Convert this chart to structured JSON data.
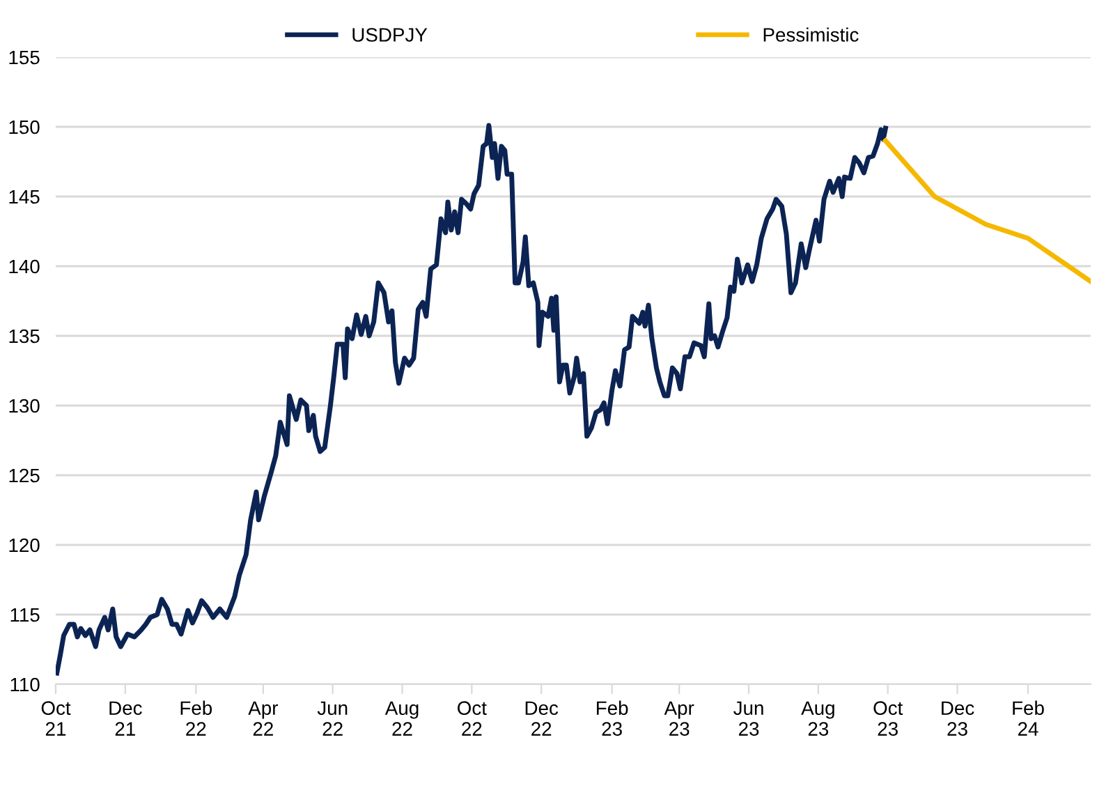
{
  "chart_data": {
    "type": "line",
    "xlim": [
      "2021-10-01",
      "2024-03-27"
    ],
    "ylim": [
      110,
      155
    ],
    "xticks": [
      {
        "value": "2021-10-01",
        "label": "Oct\n21"
      },
      {
        "value": "2021-12-01",
        "label": "Dec\n21"
      },
      {
        "value": "2022-02-01",
        "label": "Feb\n22"
      },
      {
        "value": "2022-04-01",
        "label": "Apr\n22"
      },
      {
        "value": "2022-06-01",
        "label": "Jun\n22"
      },
      {
        "value": "2022-08-01",
        "label": "Aug\n22"
      },
      {
        "value": "2022-10-01",
        "label": "Oct\n22"
      },
      {
        "value": "2022-12-01",
        "label": "Dec\n22"
      },
      {
        "value": "2023-02-01",
        "label": "Feb\n23"
      },
      {
        "value": "2023-04-01",
        "label": "Apr\n23"
      },
      {
        "value": "2023-06-01",
        "label": "Jun\n23"
      },
      {
        "value": "2023-08-01",
        "label": "Aug\n23"
      },
      {
        "value": "2023-10-01",
        "label": "Oct\n23"
      },
      {
        "value": "2023-12-01",
        "label": "Dec\n23"
      },
      {
        "value": "2024-02-01",
        "label": "Feb\n24"
      }
    ],
    "yticks": [
      110,
      115,
      120,
      125,
      130,
      135,
      140,
      145,
      150,
      155
    ],
    "grid": "y",
    "legend": "top",
    "marker": "none",
    "line_style": "solid",
    "series": [
      {
        "name": "USDPJY",
        "color": "#0c2454",
        "x": [
          "2021-10-02",
          "2021-10-05",
          "2021-10-08",
          "2021-10-13",
          "2021-10-17",
          "2021-10-20",
          "2021-10-23",
          "2021-10-27",
          "2021-10-31",
          "2021-11-05",
          "2021-11-08",
          "2021-11-13",
          "2021-11-16",
          "2021-11-20",
          "2021-11-23",
          "2021-11-27",
          "2021-12-03",
          "2021-12-09",
          "2021-12-15",
          "2021-12-19",
          "2021-12-23",
          "2021-12-29",
          "2022-01-02",
          "2022-01-07",
          "2022-01-11",
          "2022-01-15",
          "2022-01-19",
          "2022-01-25",
          "2022-01-29",
          "2022-02-02",
          "2022-02-06",
          "2022-02-11",
          "2022-02-16",
          "2022-02-22",
          "2022-02-28",
          "2022-03-07",
          "2022-03-11",
          "2022-03-17",
          "2022-03-21",
          "2022-03-26",
          "2022-03-28",
          "2022-04-02",
          "2022-04-08",
          "2022-04-12",
          "2022-04-16",
          "2022-04-22",
          "2022-04-24",
          "2022-04-30",
          "2022-05-04",
          "2022-05-09",
          "2022-05-11",
          "2022-05-15",
          "2022-05-17",
          "2022-05-21",
          "2022-05-25",
          "2022-05-30",
          "2022-06-02",
          "2022-06-05",
          "2022-06-10",
          "2022-06-12",
          "2022-06-14",
          "2022-06-18",
          "2022-06-22",
          "2022-06-26",
          "2022-06-30",
          "2022-07-03",
          "2022-07-07",
          "2022-07-11",
          "2022-07-16",
          "2022-07-20",
          "2022-07-23",
          "2022-07-26",
          "2022-07-29",
          "2022-08-03",
          "2022-08-07",
          "2022-08-11",
          "2022-08-15",
          "2022-08-19",
          "2022-08-22",
          "2022-08-26",
          "2022-08-31",
          "2022-09-04",
          "2022-09-08",
          "2022-09-10",
          "2022-09-13",
          "2022-09-16",
          "2022-09-19",
          "2022-09-22",
          "2022-09-26",
          "2022-09-30",
          "2022-10-03",
          "2022-10-07",
          "2022-10-11",
          "2022-10-14",
          "2022-10-16",
          "2022-10-19",
          "2022-10-21",
          "2022-10-24",
          "2022-10-27",
          "2022-10-30",
          "2022-11-01",
          "2022-11-05",
          "2022-11-08",
          "2022-11-11",
          "2022-11-15",
          "2022-11-17",
          "2022-11-20",
          "2022-11-24",
          "2022-11-28",
          "2022-11-29",
          "2022-12-02",
          "2022-12-07",
          "2022-12-10",
          "2022-12-12",
          "2022-12-14",
          "2022-12-17",
          "2022-12-20",
          "2022-12-23",
          "2022-12-26",
          "2022-12-30",
          "2023-01-01",
          "2023-01-04",
          "2023-01-07",
          "2023-01-10",
          "2023-01-14",
          "2023-01-18",
          "2023-01-22",
          "2023-01-25",
          "2023-01-28",
          "2023-02-01",
          "2023-02-04",
          "2023-02-08",
          "2023-02-12",
          "2023-02-16",
          "2023-02-19",
          "2023-02-25",
          "2023-02-28",
          "2023-03-02",
          "2023-03-05",
          "2023-03-08",
          "2023-03-12",
          "2023-03-15",
          "2023-03-19",
          "2023-03-22",
          "2023-03-26",
          "2023-03-30",
          "2023-04-02",
          "2023-04-06",
          "2023-04-10",
          "2023-04-14",
          "2023-04-20",
          "2023-04-23",
          "2023-04-27",
          "2023-04-29",
          "2023-05-02",
          "2023-05-05",
          "2023-05-09",
          "2023-05-13",
          "2023-05-16",
          "2023-05-19",
          "2023-05-22",
          "2023-05-26",
          "2023-05-31",
          "2023-06-04",
          "2023-06-08",
          "2023-06-12",
          "2023-06-17",
          "2023-06-22",
          "2023-06-25",
          "2023-06-30",
          "2023-07-04",
          "2023-07-08",
          "2023-07-12",
          "2023-07-17",
          "2023-07-21",
          "2023-07-24",
          "2023-07-30",
          "2023-08-02",
          "2023-08-06",
          "2023-08-11",
          "2023-08-14",
          "2023-08-19",
          "2023-08-22",
          "2023-08-24",
          "2023-08-29",
          "2023-09-02",
          "2023-09-06",
          "2023-09-10",
          "2023-09-14",
          "2023-09-18",
          "2023-09-22",
          "2023-09-25",
          "2023-09-27",
          "2023-09-29"
        ],
        "values": [
          110.8,
          112.1,
          113.5,
          114.3,
          114.3,
          113.4,
          114.0,
          113.5,
          113.9,
          112.7,
          113.9,
          114.8,
          113.9,
          115.4,
          113.4,
          112.7,
          113.6,
          113.4,
          113.9,
          114.3,
          114.8,
          115.0,
          116.1,
          115.4,
          114.3,
          114.3,
          113.6,
          115.3,
          114.4,
          115.1,
          116.0,
          115.5,
          114.8,
          115.4,
          114.8,
          116.3,
          117.8,
          119.3,
          121.8,
          123.8,
          121.8,
          123.5,
          125.2,
          126.4,
          128.8,
          127.2,
          130.7,
          129.0,
          130.4,
          130.0,
          128.2,
          129.3,
          127.8,
          126.7,
          127.0,
          130.0,
          132.1,
          134.4,
          134.4,
          132.0,
          135.5,
          134.8,
          136.5,
          135.1,
          136.4,
          135.0,
          136.0,
          138.8,
          138.1,
          136.0,
          136.8,
          133.1,
          131.6,
          133.4,
          132.9,
          133.4,
          136.9,
          137.4,
          136.4,
          139.8,
          140.1,
          143.4,
          142.4,
          144.6,
          142.6,
          143.9,
          142.4,
          144.8,
          144.5,
          144.1,
          145.2,
          145.8,
          148.6,
          148.8,
          150.1,
          147.8,
          148.8,
          146.3,
          148.6,
          148.3,
          146.6,
          146.6,
          138.8,
          138.8,
          140.3,
          142.1,
          138.6,
          138.8,
          137.4,
          134.3,
          136.7,
          136.4,
          137.7,
          135.4,
          137.8,
          131.7,
          132.9,
          132.9,
          130.9,
          132.1,
          133.4,
          131.7,
          132.3,
          127.8,
          128.4,
          129.5,
          129.7,
          130.2,
          128.7,
          131.1,
          132.5,
          131.4,
          134.0,
          134.2,
          136.4,
          135.9,
          136.7,
          135.7,
          137.2,
          134.8,
          132.7,
          131.7,
          130.7,
          130.7,
          132.7,
          132.3,
          131.2,
          133.5,
          133.5,
          134.5,
          134.3,
          133.5,
          137.3,
          134.8,
          135.0,
          134.2,
          135.3,
          136.3,
          138.5,
          138.2,
          140.5,
          138.8,
          140.1,
          138.9,
          140.1,
          142.0,
          143.4,
          144.1,
          144.8,
          144.3,
          142.3,
          138.1,
          138.8,
          141.6,
          139.9,
          141.1,
          143.3,
          141.8,
          144.8,
          146.1,
          145.3,
          146.3,
          145.0,
          146.4,
          146.3,
          147.8,
          147.4,
          146.7,
          147.8,
          147.9,
          148.8,
          149.8,
          149.1,
          149.9
        ]
      },
      {
        "name": "Pessimistic",
        "color": "#f5b800",
        "x": [
          "2023-09-29",
          "2023-11-11",
          "2023-12-26",
          "2024-02-01",
          "2024-03-27"
        ],
        "values": [
          149.0,
          145.0,
          143.0,
          142.0,
          138.9
        ]
      }
    ]
  }
}
